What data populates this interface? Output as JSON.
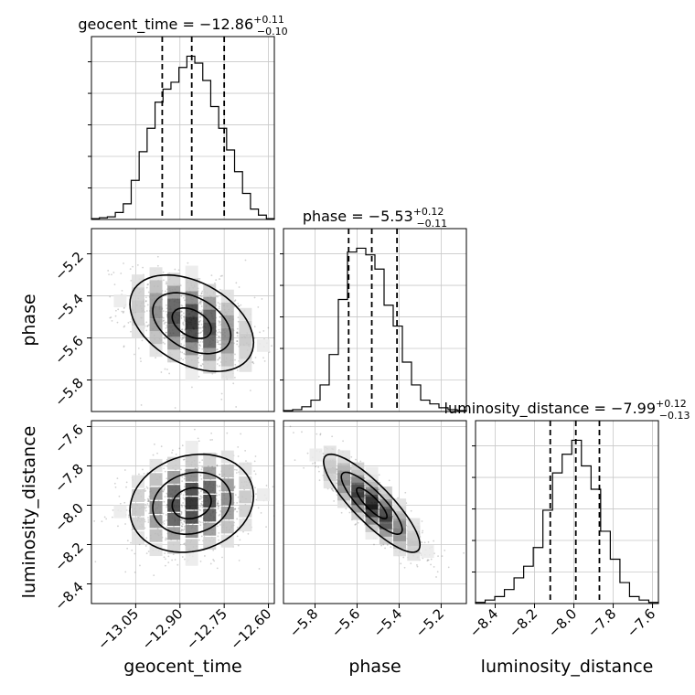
{
  "chart_data": {
    "type": "corner",
    "parameters": [
      "geocent_time",
      "phase",
      "luminosity_distance"
    ],
    "axis_labels": [
      "geocent_time",
      "phase",
      "luminosity_distance"
    ],
    "ranges": [
      [
        -13.2,
        -12.58
      ],
      [
        -5.95,
        -5.08
      ],
      [
        -8.5,
        -7.57
      ]
    ],
    "ticks": [
      [
        -13.05,
        -12.9,
        -12.75,
        -12.6
      ],
      [
        -5.8,
        -5.6,
        -5.4,
        -5.2
      ],
      [
        -8.4,
        -8.2,
        -8.0,
        -7.8,
        -7.6
      ]
    ],
    "tick_labels": [
      [
        "−13.05",
        "−12.90",
        "−12.75",
        "−12.60"
      ],
      [
        "−5.8",
        "−5.6",
        "−5.4",
        "−5.2"
      ],
      [
        "−8.4",
        "−8.2",
        "−8.0",
        "−7.8",
        "−7.6"
      ]
    ],
    "titles": [
      {
        "name": "geocent_time",
        "median": "−12.86",
        "plus": "+0.11",
        "minus": "−0.10"
      },
      {
        "name": "phase",
        "median": "−5.53",
        "plus": "+0.12",
        "minus": "−0.11"
      },
      {
        "name": "luminosity_distance",
        "median": "−7.99",
        "plus": "+0.12",
        "minus": "−0.13"
      }
    ],
    "quantiles": [
      [
        -12.96,
        -12.86,
        -12.75
      ],
      [
        -5.64,
        -5.53,
        -5.41
      ],
      [
        -8.12,
        -7.99,
        -7.87
      ]
    ],
    "histograms": [
      {
        "bins": [
          -13.2,
          -12.58
        ],
        "counts": [
          1,
          2,
          3,
          8,
          18,
          45,
          78,
          105,
          135,
          150,
          158,
          175,
          188,
          180,
          160,
          130,
          105,
          80,
          55,
          30,
          12,
          5,
          1
        ]
      },
      {
        "bins": [
          -5.95,
          -5.08
        ],
        "counts": [
          1,
          2,
          5,
          12,
          28,
          60,
          118,
          168,
          172,
          165,
          150,
          112,
          90,
          52,
          28,
          12,
          8,
          4,
          2,
          1
        ]
      },
      {
        "bins": [
          -8.5,
          -7.57
        ],
        "counts": [
          1,
          3,
          6,
          12,
          22,
          32,
          48,
          80,
          112,
          128,
          140,
          118,
          98,
          62,
          38,
          18,
          6,
          3,
          1
        ]
      }
    ],
    "correlations": {
      "phase_vs_geocent_time": -0.4,
      "luminosity_distance_vs_geocent_time": 0.15,
      "luminosity_distance_vs_phase": -0.85
    },
    "grid": true
  }
}
